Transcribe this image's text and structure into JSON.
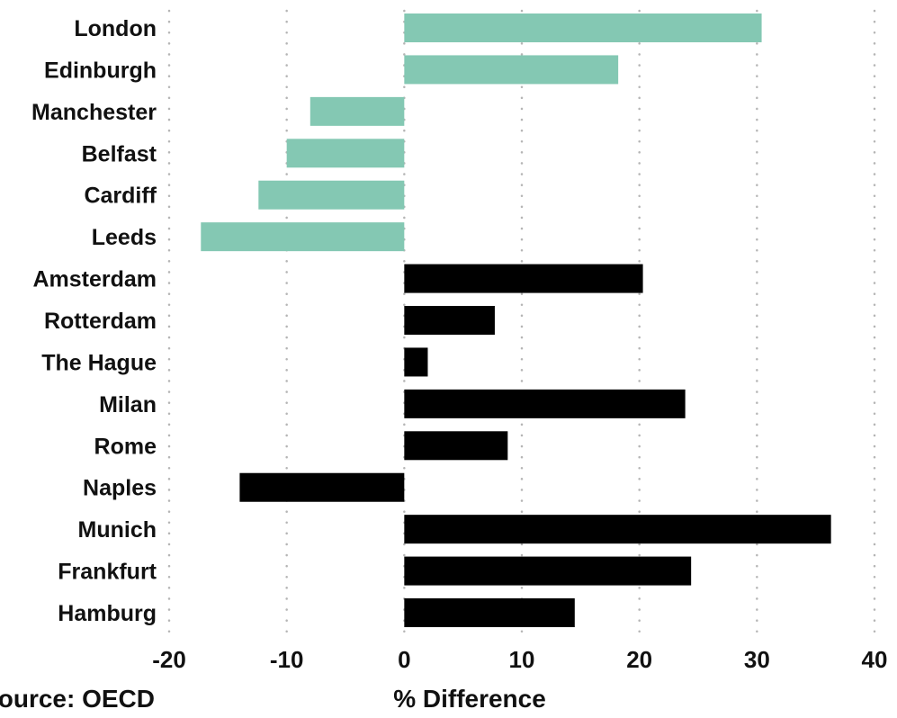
{
  "chart_data": {
    "type": "bar",
    "orientation": "horizontal",
    "categories": [
      "London",
      "Edinburgh",
      "Manchester",
      "Belfast",
      "Cardiff",
      "Leeds",
      "Amsterdam",
      "Rotterdam",
      "The Hague",
      "Milan",
      "Rome",
      "Naples",
      "Munich",
      "Frankfurt",
      "Hamburg"
    ],
    "values": [
      30.4,
      18.2,
      -8.0,
      -10.0,
      -12.4,
      -17.3,
      20.3,
      7.7,
      2.0,
      23.9,
      8.8,
      -14.0,
      36.3,
      24.4,
      14.5
    ],
    "bar_colors": [
      "#84c8b3",
      "#84c8b3",
      "#84c8b3",
      "#84c8b3",
      "#84c8b3",
      "#84c8b3",
      "#000000",
      "#000000",
      "#000000",
      "#000000",
      "#000000",
      "#000000",
      "#000000",
      "#000000",
      "#000000"
    ],
    "xlim": [
      -20,
      40
    ],
    "xticks": [
      -20,
      -10,
      0,
      10,
      20,
      30,
      40
    ],
    "tick_labels": [
      "-20",
      "-10",
      "0",
      "10",
      "20",
      "30",
      "40"
    ],
    "xlabel": "% Difference",
    "source": "Source: OECD",
    "grid": true
  }
}
